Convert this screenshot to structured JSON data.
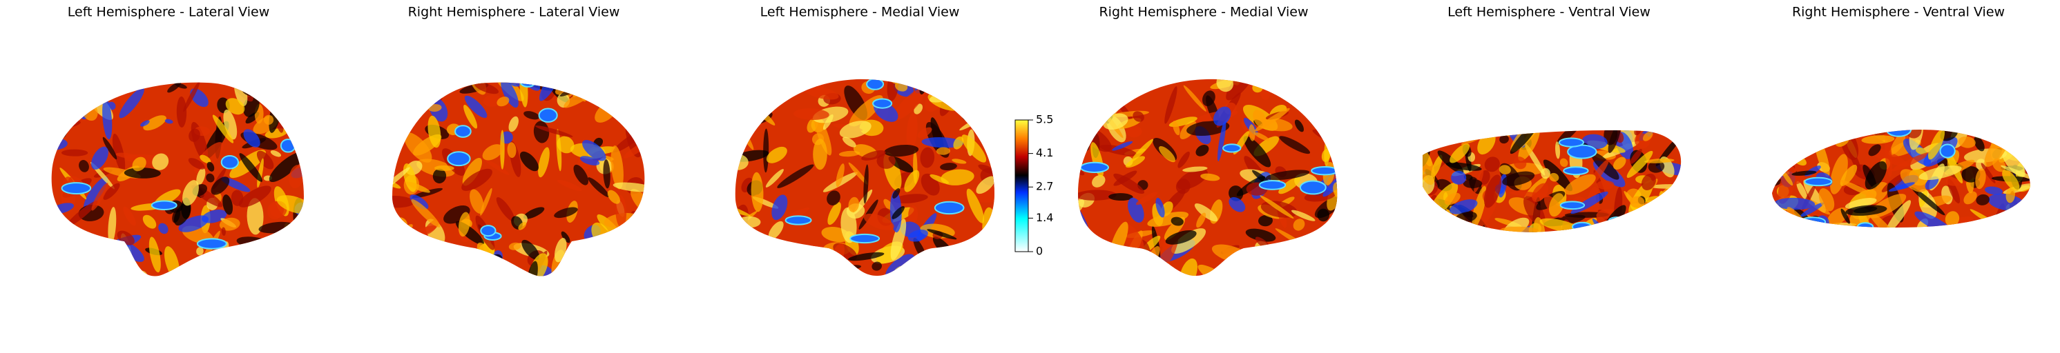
{
  "panels": [
    {
      "title": "Left Hemisphere - Lateral View"
    },
    {
      "title": "Right Hemisphere - Lateral View"
    },
    {
      "title": "Left Hemisphere - Medial View"
    },
    {
      "title": "Right Hemisphere - Medial View"
    },
    {
      "title": "Left Hemisphere - Ventral View"
    },
    {
      "title": "Right Hemisphere - Ventral View"
    }
  ],
  "colorbar": {
    "lim": [
      0,
      5.5
    ],
    "ticks": [
      0,
      1.4,
      2.7,
      4.1,
      5.5
    ]
  }
}
